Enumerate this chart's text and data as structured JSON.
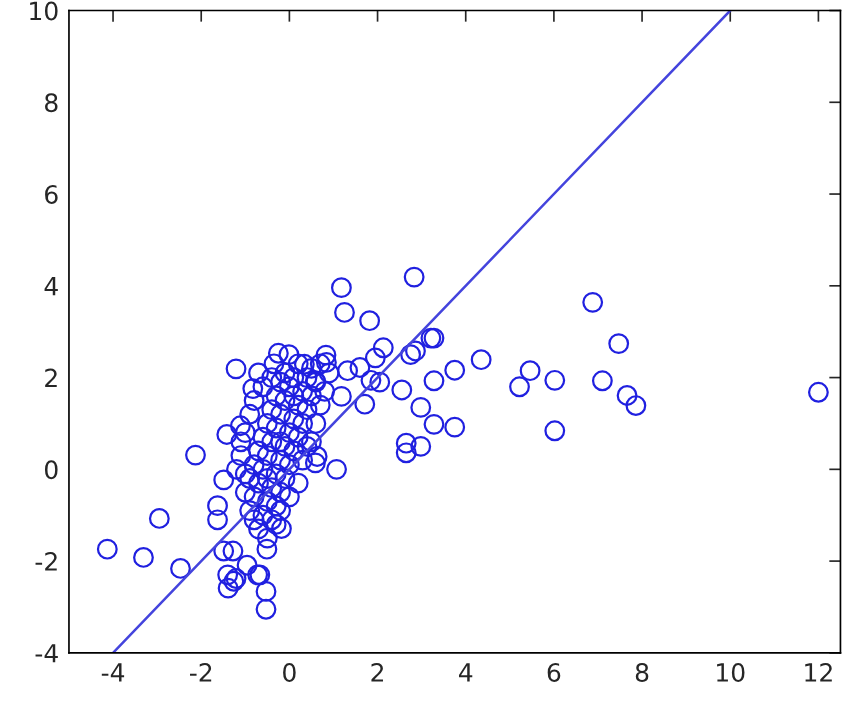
{
  "chart_data": {
    "type": "scatter",
    "xlim": [
      -5,
      12.5
    ],
    "ylim": [
      -4,
      10
    ],
    "xticks": [
      -4,
      -2,
      0,
      2,
      4,
      6,
      8,
      10,
      12
    ],
    "yticks": [
      -4,
      -2,
      0,
      2,
      4,
      6,
      8,
      10
    ],
    "grid": false,
    "legend": false,
    "marker": "circle",
    "series": [
      {
        "color": "#2020e0",
        "x": [
          12.0,
          6.88,
          7.47,
          7.1,
          7.66,
          7.86,
          6.02,
          6.02,
          5.46,
          5.22,
          4.35,
          3.75,
          3.75,
          3.28,
          3.28,
          3.28,
          1.18,
          2.83,
          1.25,
          1.82,
          3.21,
          2.55,
          2.98,
          2.65,
          2.65,
          2.98,
          1.71,
          1.07,
          -2.13,
          -2.47,
          -1.21,
          -0.53,
          -0.53,
          -0.67,
          -1.26,
          -1.4,
          -0.96,
          -0.51,
          -1.49,
          -1.28,
          -0.18,
          -1.63,
          -1.63,
          -1.49,
          -1.42,
          -1.11,
          -0.83,
          -0.25,
          -0.01,
          0.34,
          0.83,
          0.84,
          0.59,
          0.63,
          0.59,
          1.18,
          1.32,
          1.6,
          1.95,
          2.13,
          2.05,
          1.85,
          2.75,
          2.86,
          -4.13,
          -3.31,
          -2.95,
          -1.39,
          -1.21,
          -0.72,
          -1.0,
          -0.9,
          -0.8,
          -0.7,
          -0.6,
          -0.5,
          -0.4,
          -0.3,
          -0.2,
          -0.1,
          -0.9,
          -0.8,
          -0.7,
          -0.6,
          -0.5,
          -0.4,
          -0.3,
          -0.2,
          -0.1,
          0.0,
          0.1,
          -0.7,
          -0.6,
          -0.5,
          -0.4,
          -0.3,
          -0.2,
          -0.1,
          0.0,
          0.1,
          0.2,
          0.3,
          0.4,
          -0.5,
          -0.4,
          -0.3,
          -0.2,
          -0.1,
          0.0,
          0.1,
          0.2,
          0.3,
          0.4,
          0.5,
          0.6,
          -1.1,
          -1.2,
          -1.0,
          -0.9,
          -0.8,
          -0.6,
          -0.4,
          -0.7,
          0.2,
          0.3,
          0.5,
          0.6,
          0.7,
          0.8,
          0.9,
          0.5,
          0.2,
          -0.3,
          -0.2,
          0.0,
          -0.8,
          -1.0,
          -1.1,
          -0.5,
          -0.2,
          0.1,
          0.4,
          0.7,
          -0.35
        ],
        "values": [
          1.68,
          3.64,
          2.74,
          1.93,
          1.61,
          1.39,
          1.94,
          0.84,
          2.15,
          1.8,
          2.39,
          2.16,
          0.92,
          0.98,
          1.93,
          2.86,
          3.96,
          4.19,
          3.42,
          3.24,
          2.86,
          1.73,
          1.35,
          0.57,
          0.36,
          0.5,
          1.42,
          0.0,
          0.31,
          -2.16,
          2.19,
          -3.05,
          -2.66,
          -2.3,
          -2.44,
          -2.3,
          -2.09,
          -1.74,
          -1.78,
          -1.78,
          -1.29,
          -1.1,
          -0.79,
          -0.23,
          0.76,
          0.95,
          1.76,
          2.53,
          2.5,
          2.29,
          2.49,
          2.33,
          1.93,
          0.28,
          0.14,
          1.59,
          2.15,
          2.22,
          2.43,
          2.65,
          1.9,
          1.94,
          2.5,
          2.58,
          -1.74,
          -1.92,
          -1.07,
          -2.59,
          -2.38,
          -2.3,
          -0.5,
          -0.2,
          0.1,
          0.4,
          0.7,
          1.0,
          1.3,
          1.6,
          1.9,
          2.1,
          -0.9,
          -0.6,
          -0.3,
          0.0,
          0.3,
          0.6,
          0.9,
          1.2,
          1.5,
          1.8,
          2.0,
          -1.3,
          -1.0,
          -0.7,
          -0.4,
          -0.1,
          0.2,
          0.5,
          0.8,
          1.1,
          1.4,
          1.7,
          2.0,
          -1.5,
          -1.1,
          -0.8,
          -0.5,
          -0.2,
          0.1,
          0.4,
          0.7,
          1.0,
          1.3,
          1.6,
          1.9,
          0.3,
          0.0,
          0.8,
          1.2,
          1.5,
          1.8,
          2.0,
          2.1,
          -0.3,
          0.2,
          0.6,
          1.0,
          1.4,
          1.7,
          2.1,
          2.2,
          2.3,
          -1.2,
          -0.9,
          -0.6,
          -1.1,
          -0.1,
          0.6,
          -0.2,
          0.6,
          1.6,
          0.5,
          2.3,
          2.3
        ]
      },
      {
        "type": "line",
        "color": "#4444dd",
        "x": [
          -4,
          10
        ],
        "values": [
          -4,
          10
        ],
        "marker": "none",
        "line_style": "solid"
      }
    ]
  }
}
